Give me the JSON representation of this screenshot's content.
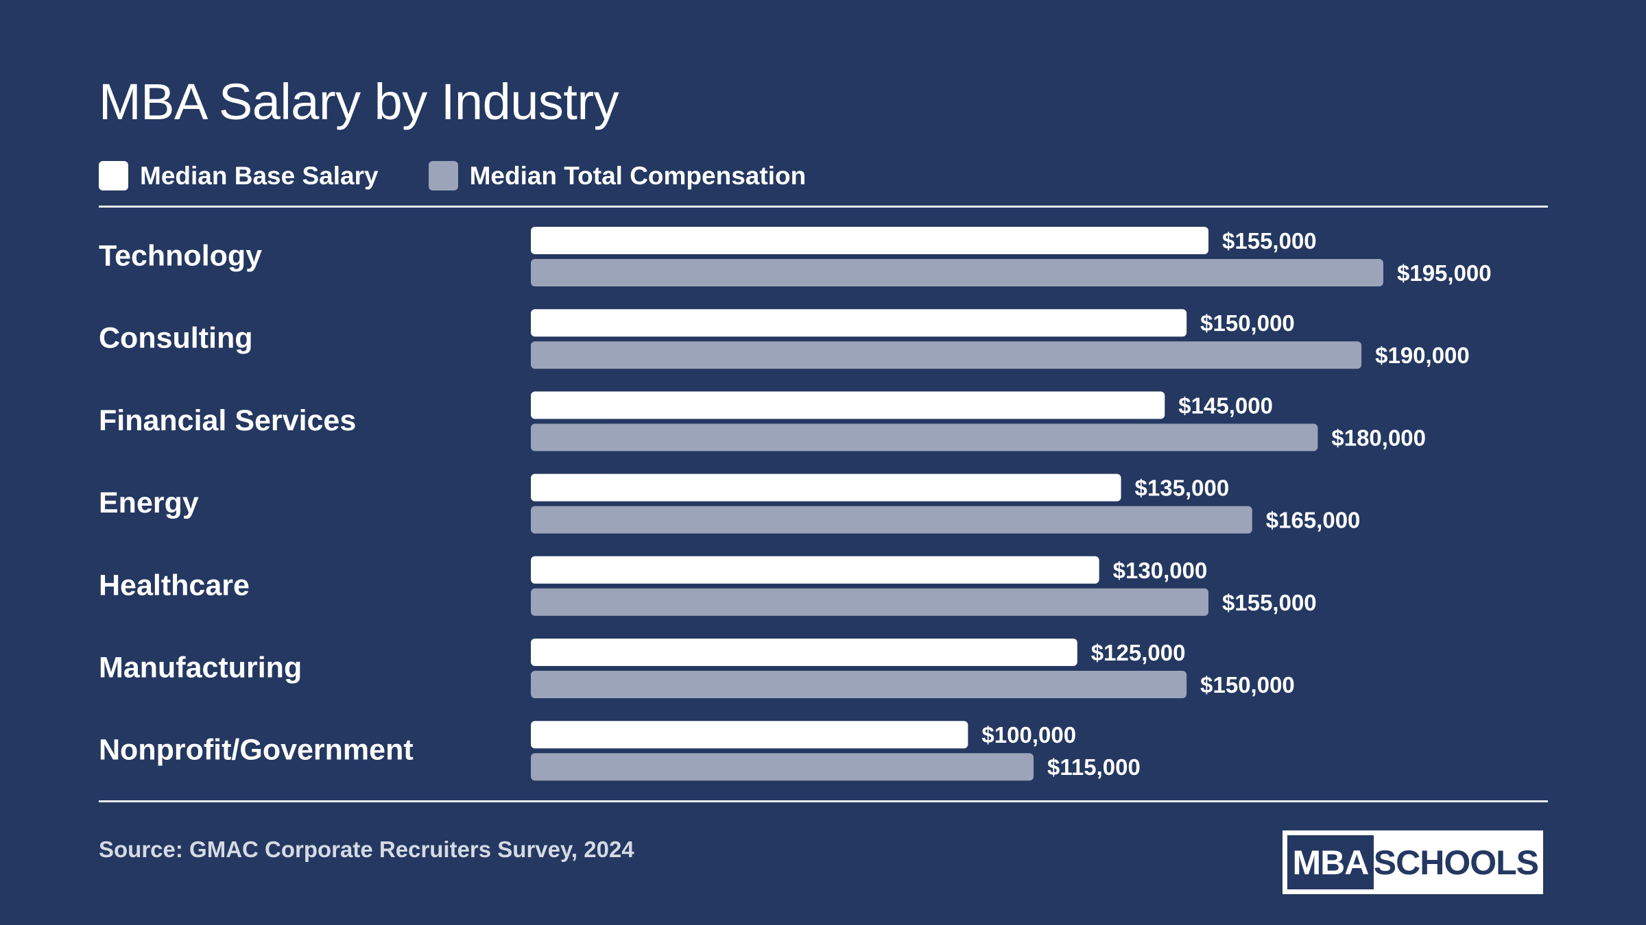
{
  "colors": {
    "background": "#243861",
    "base": "#ffffff",
    "total": "#9ba4b8"
  },
  "legend": {
    "base_label": "Median Base Salary",
    "total_label": "Median Total Compensation"
  },
  "source": "Source: GMAC Corporate Recruiters Survey, 2024",
  "logo": {
    "left": "MBA",
    "right": "SCHOOLS"
  },
  "chart_data": {
    "type": "bar",
    "orientation": "horizontal",
    "title": "MBA Salary by Industry",
    "categories": [
      "Technology",
      "Consulting",
      "Financial Services",
      "Energy",
      "Healthcare",
      "Manufacturing",
      "Nonprofit/Government"
    ],
    "series": [
      {
        "name": "Median Base Salary",
        "values": [
          155000,
          150000,
          145000,
          135000,
          130000,
          125000,
          100000
        ],
        "labels": [
          "$155,000",
          "$150,000",
          "$145,000",
          "$135,000",
          "$130,000",
          "$125,000",
          "$100,000"
        ]
      },
      {
        "name": "Median Total Compensation",
        "values": [
          195000,
          190000,
          180000,
          165000,
          155000,
          150000,
          115000
        ],
        "labels": [
          "$195,000",
          "$190,000",
          "$180,000",
          "$165,000",
          "$155,000",
          "$150,000",
          "$115,000"
        ]
      }
    ],
    "xlim": [
      0,
      195000
    ],
    "grid": false,
    "legend_position": "top-left"
  }
}
